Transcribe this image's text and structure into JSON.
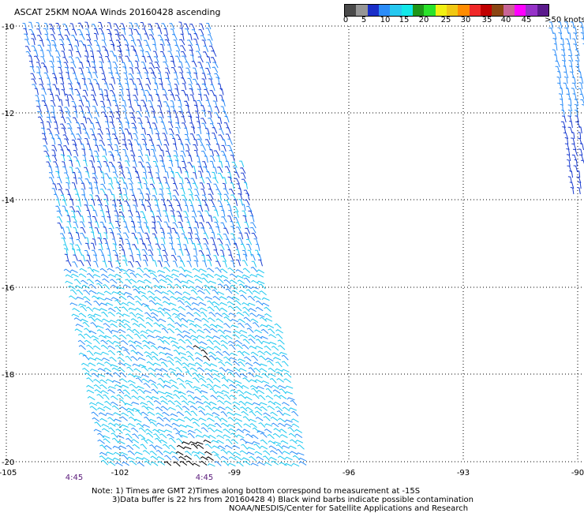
{
  "title": "ASCAT 25KM NOAA Winds 20160428 ascending",
  "scale": {
    "colors": [
      "#4a4a4a",
      "#969696",
      "#1a2ec8",
      "#2a8cf8",
      "#26c8f0",
      "#12e8e8",
      "#1e9618",
      "#2ae22a",
      "#f0f012",
      "#f0c812",
      "#ff8c00",
      "#f02828",
      "#c00000",
      "#8b4513",
      "#c86496",
      "#ff00ff",
      "#9632c8",
      "#5a1a8c"
    ],
    "labels": [
      "0",
      "5",
      "10",
      "15",
      "20",
      "25",
      "30",
      "35",
      "40",
      "45",
      ">50 knots"
    ]
  },
  "axes": {
    "lat_labels": [
      "-10",
      "-12",
      "-14",
      "-16",
      "-18",
      "-20"
    ],
    "lon_labels": [
      "-105",
      "-102",
      "-99",
      "-96",
      "-93",
      "-90"
    ]
  },
  "times": [
    "4:45",
    "4:45"
  ],
  "notes": {
    "line1": "Note: 1) Times are GMT 2)Times along bottom correspond to measurement at -15S",
    "line2": "3)Data buffer is 22 hrs from 20160428 4) Black wind barbs indicate possible contamination",
    "line3": "NOAA/NESDIS/Center for Satellite Applications and Research"
  },
  "swath_colors": {
    "dark_blue": "#1a3cd0",
    "blue": "#2a8cf8",
    "cyan": "#1cc8f0",
    "black": "#000000"
  }
}
